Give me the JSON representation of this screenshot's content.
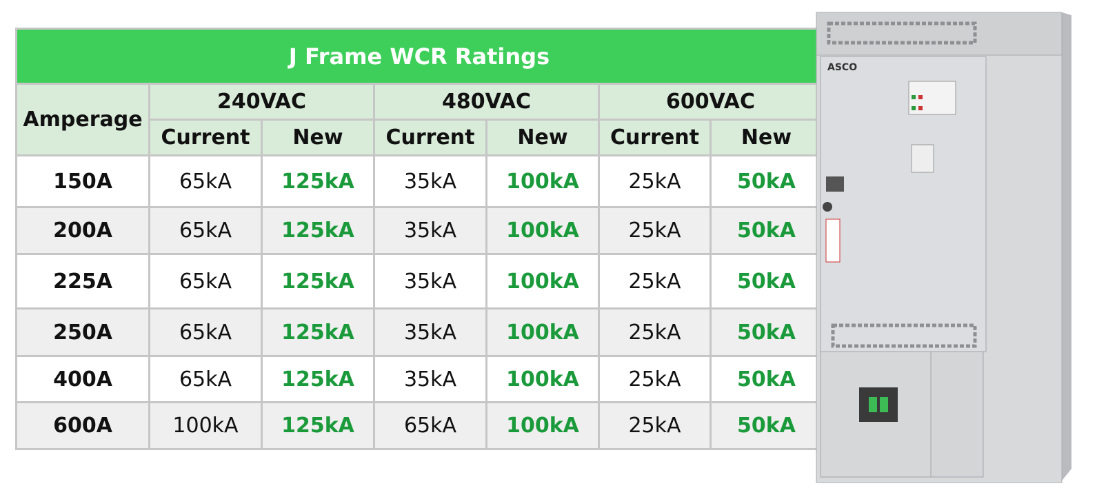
{
  "table": {
    "title": "J Frame WCR Ratings",
    "row_header": "Amperage",
    "groups": [
      "240VAC",
      "480VAC",
      "600VAC"
    ],
    "subheaders": [
      "Current",
      "New",
      "Current",
      "New",
      "Current",
      "New"
    ],
    "rows": [
      [
        "150A",
        "65kA",
        "125kA",
        "35kA",
        "100kA",
        "25kA",
        "50kA"
      ],
      [
        "200A",
        "65kA",
        "125kA",
        "35kA",
        "100kA",
        "25kA",
        "50kA"
      ],
      [
        "225A",
        "65kA",
        "125kA",
        "35kA",
        "100kA",
        "25kA",
        "50kA"
      ],
      [
        "250A",
        "65kA",
        "125kA",
        "35kA",
        "100kA",
        "25kA",
        "50kA"
      ],
      [
        "400A",
        "65kA",
        "125kA",
        "35kA",
        "100kA",
        "25kA",
        "50kA"
      ],
      [
        "600A",
        "100kA",
        "125kA",
        "65kA",
        "100kA",
        "25kA",
        "50kA"
      ]
    ]
  },
  "cabinet": {
    "label": "ASCO"
  }
}
